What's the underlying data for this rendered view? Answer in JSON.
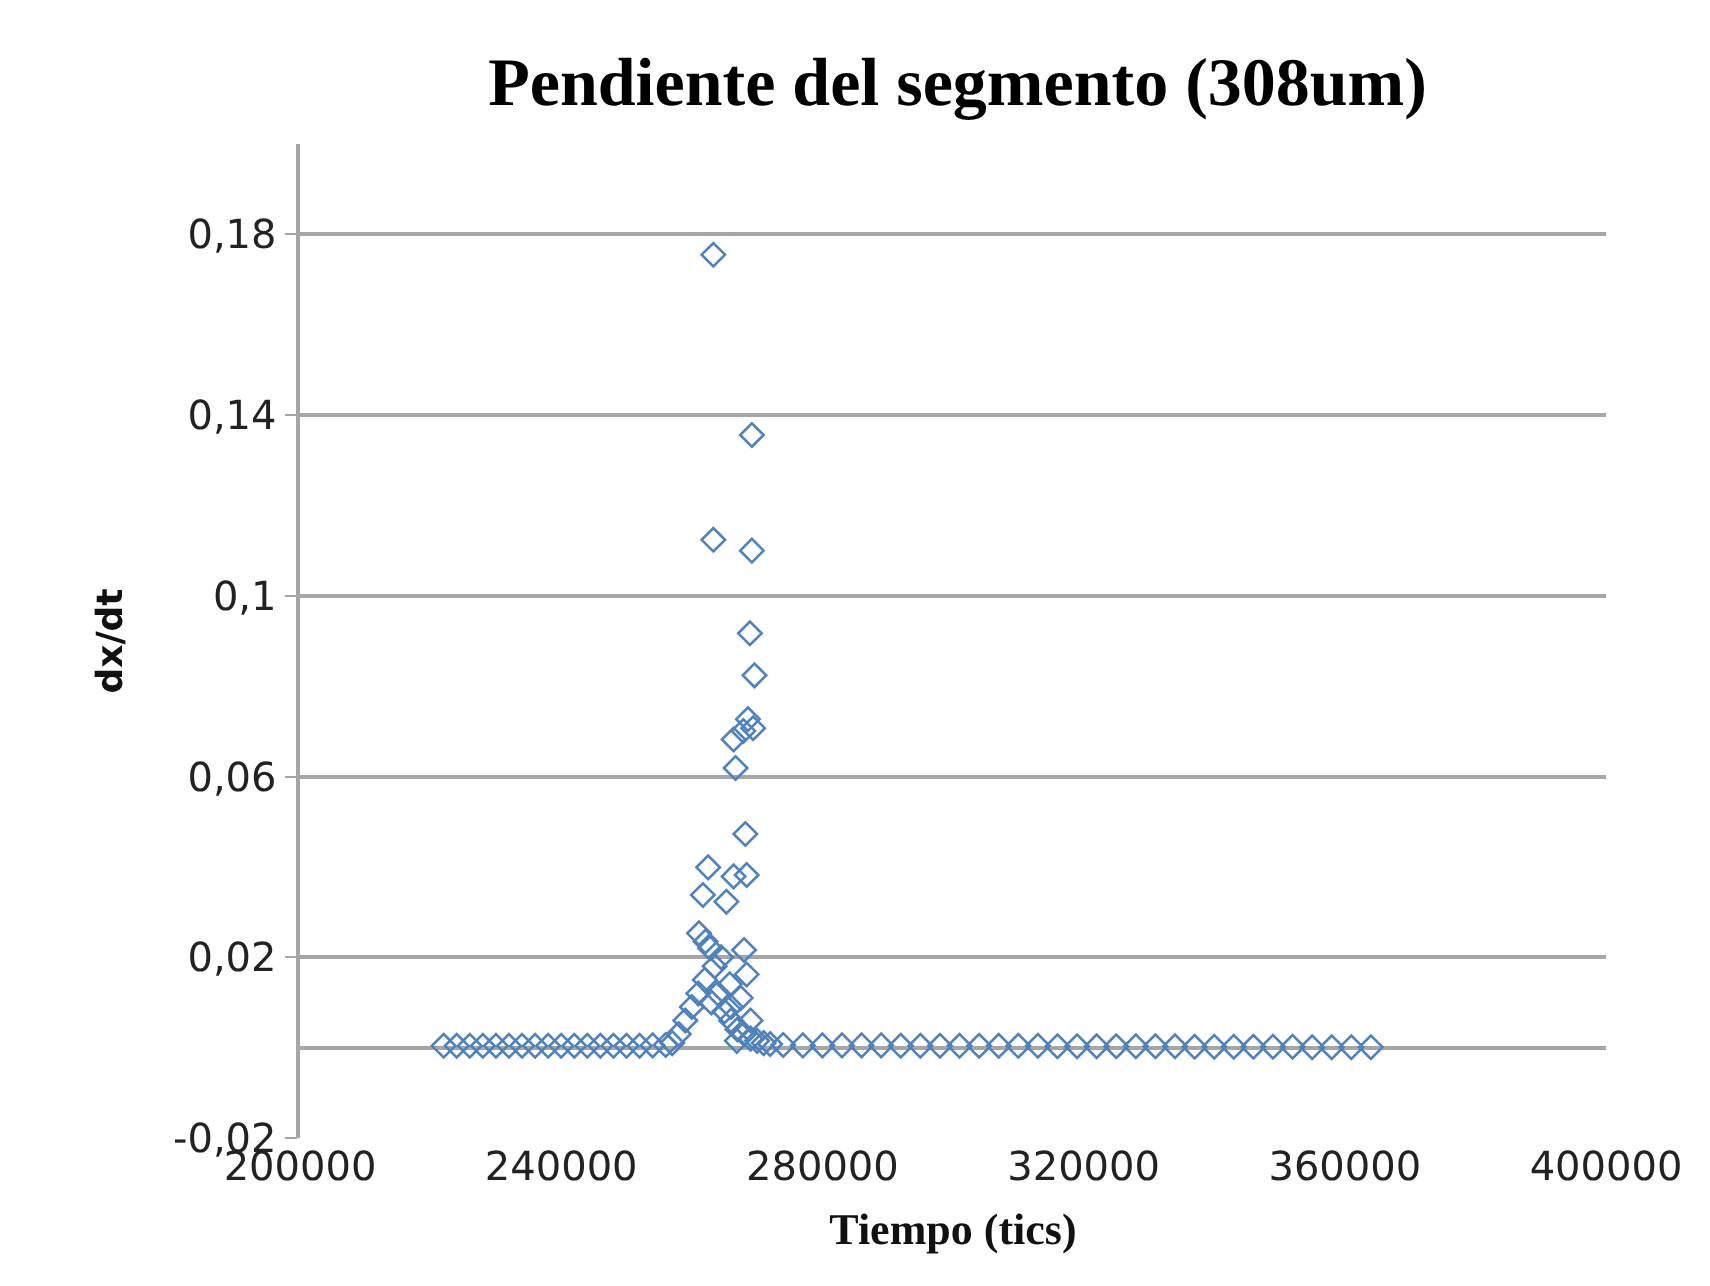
{
  "chart_data": {
    "type": "scatter",
    "title": "Pendiente del segmento (308um)",
    "xlabel": "Tiempo (tics)",
    "ylabel": "dx/dt",
    "marker": "diamond",
    "grid": "y",
    "xlim": [
      200000,
      400000
    ],
    "xticks": [
      200000,
      240000,
      280000,
      320000,
      360000,
      400000
    ],
    "ylim": [
      -0.02,
      0.2
    ],
    "yticks": [
      {
        "value": -0.02,
        "label": "-0,02"
      },
      {
        "value": 0.02,
        "label": "0,02"
      },
      {
        "value": 0.06,
        "label": "0,06"
      },
      {
        "value": 0.1,
        "label": "0,1"
      },
      {
        "value": 0.14,
        "label": "0,14"
      },
      {
        "value": 0.18,
        "label": "0,18"
      }
    ],
    "series": [
      {
        "color": "#4f81bd",
        "x": [
          222000,
          224000,
          226000,
          228000,
          230000,
          232000,
          234000,
          236000,
          238000,
          240000,
          242000,
          244000,
          246000,
          248000,
          250000,
          252000,
          254000,
          256000,
          257000,
          258000,
          259000,
          260000,
          261000,
          262000,
          263000,
          264000,
          265000,
          266000,
          267000,
          268000,
          269000,
          270000,
          271000,
          272000,
          274000,
          277000,
          280000,
          283000,
          286000,
          289000,
          292000,
          295000,
          298000,
          301000,
          304000,
          307000,
          310000,
          313000,
          316000,
          319000,
          322000,
          325000,
          328000,
          331000,
          334000,
          337000,
          340000,
          343000,
          346000,
          349000,
          352000,
          355000,
          358000,
          361000,
          364000,
          263300,
          269200,
          263300,
          269200,
          268900,
          269600,
          268600,
          269400,
          267900,
          266400,
          266700,
          268200,
          262500,
          268400,
          266400,
          261700,
          265300,
          261100,
          262100,
          268000,
          268400,
          266900,
          263500,
          264500,
          262800,
          266000,
          267500,
          269000,
          265800
        ],
        "values": [
          0.0004,
          0.0004,
          0.0004,
          0.0004,
          0.0004,
          0.0004,
          0.0004,
          0.0004,
          0.0004,
          0.0004,
          0.0004,
          0.0004,
          0.0004,
          0.0004,
          0.0004,
          0.0004,
          0.0005,
          0.0006,
          0.001,
          0.003,
          0.006,
          0.009,
          0.012,
          0.015,
          0.01,
          0.012,
          0.008,
          0.006,
          0.004,
          0.003,
          0.002,
          0.0015,
          0.001,
          0.0008,
          0.0006,
          0.0005,
          0.0005,
          0.0005,
          0.0005,
          0.0005,
          0.0004,
          0.0004,
          0.0004,
          0.0004,
          0.0004,
          0.0004,
          0.0004,
          0.0004,
          0.0003,
          0.0003,
          0.0003,
          0.0003,
          0.0003,
          0.0003,
          0.0003,
          0.0002,
          0.0002,
          0.0002,
          0.0002,
          0.0002,
          0.0002,
          0.0001,
          0.0001,
          0.0001,
          0.0001,
          0.1755,
          0.1356,
          0.1124,
          0.11,
          0.0917,
          0.0824,
          0.0727,
          0.0707,
          0.0701,
          0.0682,
          0.0619,
          0.0473,
          0.0399,
          0.0382,
          0.0379,
          0.0338,
          0.0323,
          0.0253,
          0.0235,
          0.0216,
          0.0162,
          0.0015,
          0.018,
          0.02,
          0.022,
          0.009,
          0.011,
          0.006,
          0.014
        ]
      }
    ]
  }
}
